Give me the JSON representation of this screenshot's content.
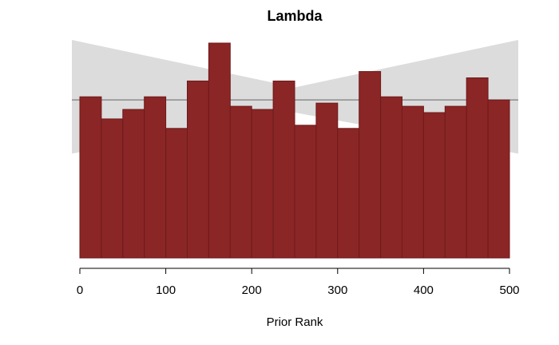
{
  "chart_data": {
    "type": "bar",
    "title": "Lambda",
    "xlabel": "Prior Rank",
    "ylabel": "",
    "xlim": [
      0,
      500
    ],
    "bin_width": 25,
    "bin_starts": [
      0,
      25,
      50,
      75,
      100,
      125,
      150,
      175,
      200,
      225,
      250,
      275,
      300,
      325,
      350,
      375,
      400,
      425,
      450,
      475
    ],
    "values": [
      51,
      44,
      47,
      51,
      41,
      56,
      68,
      48,
      47,
      56,
      42,
      49,
      41,
      59,
      51,
      48,
      46,
      48,
      57,
      50
    ],
    "ylim": [
      0,
      69
    ],
    "x_ticks": [
      0,
      100,
      200,
      300,
      400,
      500
    ],
    "reference_band": {
      "lower_left": 33,
      "lower_mid": 46,
      "upper_left": 69,
      "upper_mid": 54,
      "mean": 50
    },
    "bar_color": "#8b2626",
    "bar_edge_color": "#6e1a1a",
    "band_color": "#dcdcdc",
    "mean_line_color": "#8c8c8c"
  }
}
